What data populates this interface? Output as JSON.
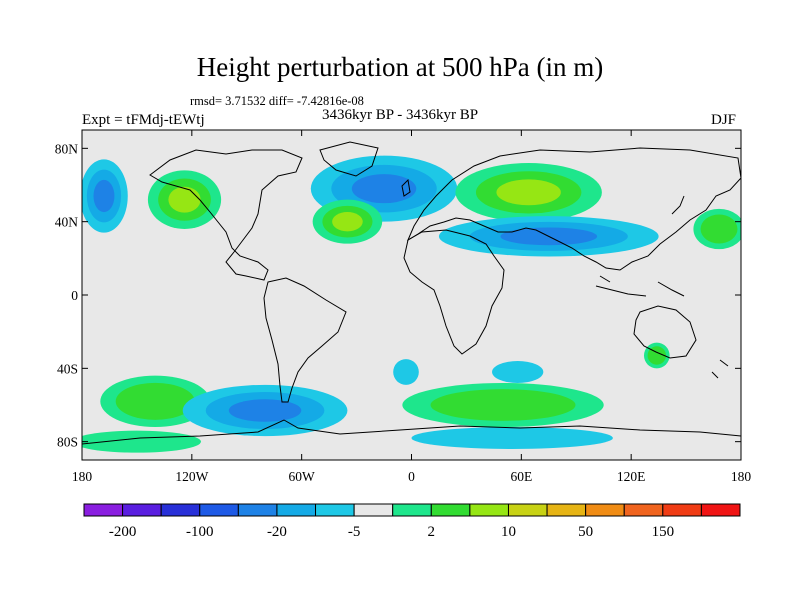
{
  "title": "Height perturbation at 500 hPa (in m)",
  "stats_text": "rmsd= 3.71532 diff= -7.42816e-08",
  "experiment_label": "Expt = tFMdj-tEWtj",
  "period_label": "3436kyr BP - 3436kyr BP",
  "season_label": "DJF",
  "map": {
    "projection": "cylindrical equidistant",
    "lon_range": [
      -180,
      180
    ],
    "lat_range": [
      -90,
      90
    ],
    "background_color": "#e8e8e8",
    "lat_ticks": [
      {
        "label": "80N",
        "value": 80
      },
      {
        "label": "40N",
        "value": 40
      },
      {
        "label": "0",
        "value": 0
      },
      {
        "label": "40S",
        "value": -40
      },
      {
        "label": "80S",
        "value": -80
      }
    ],
    "lon_ticks": [
      {
        "label": "180",
        "value": -180
      },
      {
        "label": "120W",
        "value": -120
      },
      {
        "label": "60W",
        "value": -60
      },
      {
        "label": "0",
        "value": 0
      },
      {
        "label": "60E",
        "value": 60
      },
      {
        "label": "120E",
        "value": 120
      },
      {
        "label": "180",
        "value": 180
      }
    ]
  },
  "colorbar": {
    "colors": [
      "#8a1ee0",
      "#5a1ee0",
      "#2830d8",
      "#1e5ae6",
      "#1e82e6",
      "#14aae6",
      "#1ec8e6",
      "#e8e8e8",
      "#1ee68c",
      "#32dc32",
      "#96e614",
      "#c8d214",
      "#e6b414",
      "#f08c14",
      "#f0641e",
      "#f03c14",
      "#f01414"
    ],
    "labels": [
      {
        "text": "-200",
        "boundary": 1
      },
      {
        "text": "-100",
        "boundary": 3
      },
      {
        "text": "-20",
        "boundary": 5
      },
      {
        "text": "-5",
        "boundary": 7
      },
      {
        "text": "2",
        "boundary": 9
      },
      {
        "text": "10",
        "boundary": 11
      },
      {
        "text": "50",
        "boundary": 13
      },
      {
        "text": "150",
        "boundary": 15
      }
    ]
  },
  "anomalies": [
    {
      "name": "north-atlantic-low",
      "lon": -15,
      "lat": 58,
      "rx": 40,
      "ry": 18,
      "levels": [
        "#1ec8e6",
        "#14aae6",
        "#1e82e6"
      ]
    },
    {
      "name": "north-pacific-high",
      "lon": -124,
      "lat": 52,
      "rx": 20,
      "ry": 16,
      "levels": [
        "#1ee68c",
        "#32dc32",
        "#96e614"
      ]
    },
    {
      "name": "western-atlantic-high",
      "lon": -35,
      "lat": 40,
      "rx": 19,
      "ry": 12,
      "levels": [
        "#1ee68c",
        "#32dc32",
        "#96e614"
      ]
    },
    {
      "name": "eurasian-high",
      "lon": 64,
      "lat": 56,
      "rx": 40,
      "ry": 16,
      "levels": [
        "#1ee68c",
        "#32dc32",
        "#96e614"
      ]
    },
    {
      "name": "subtropical-asia-low",
      "lon": 75,
      "lat": 32,
      "rx": 60,
      "ry": 11,
      "levels": [
        "#1ec8e6",
        "#14aae6",
        "#1e82e6"
      ]
    },
    {
      "name": "north-pacific-low",
      "lon": -168,
      "lat": 54,
      "rx": 13,
      "ry": 20,
      "levels": [
        "#1ec8e6",
        "#14aae6",
        "#1e82e6"
      ]
    },
    {
      "name": "north-pacific-east-high",
      "lon": 168,
      "lat": 36,
      "rx": 14,
      "ry": 11,
      "levels": [
        "#1ee68c",
        "#32dc32"
      ]
    },
    {
      "name": "atlantic-sub-low",
      "lon": -3,
      "lat": -42,
      "rx": 7,
      "ry": 7,
      "levels": [
        "#1ec8e6"
      ]
    },
    {
      "name": "indian-low",
      "lon": 58,
      "lat": -42,
      "rx": 14,
      "ry": 6,
      "levels": [
        "#1ec8e6"
      ]
    },
    {
      "name": "australia-high",
      "lon": 134,
      "lat": -33,
      "rx": 7,
      "ry": 7,
      "levels": [
        "#1ee68c",
        "#32dc32"
      ]
    },
    {
      "name": "south-pacific-high",
      "lon": -140,
      "lat": -58,
      "rx": 30,
      "ry": 14,
      "levels": [
        "#1ee68c",
        "#32dc32"
      ]
    },
    {
      "name": "southern-low",
      "lon": -80,
      "lat": -63,
      "rx": 45,
      "ry": 14,
      "levels": [
        "#1ec8e6",
        "#14aae6",
        "#1e82e6"
      ]
    },
    {
      "name": "southern-indian-high",
      "lon": 50,
      "lat": -60,
      "rx": 55,
      "ry": 12,
      "levels": [
        "#1ee68c",
        "#32dc32"
      ]
    },
    {
      "name": "antarctic-low",
      "lon": 55,
      "lat": -78,
      "rx": 55,
      "ry": 6,
      "levels": [
        "#1ec8e6"
      ]
    },
    {
      "name": "pacific-ant-high",
      "lon": -150,
      "lat": -80,
      "rx": 35,
      "ry": 6,
      "levels": [
        "#1ee68c"
      ]
    }
  ]
}
